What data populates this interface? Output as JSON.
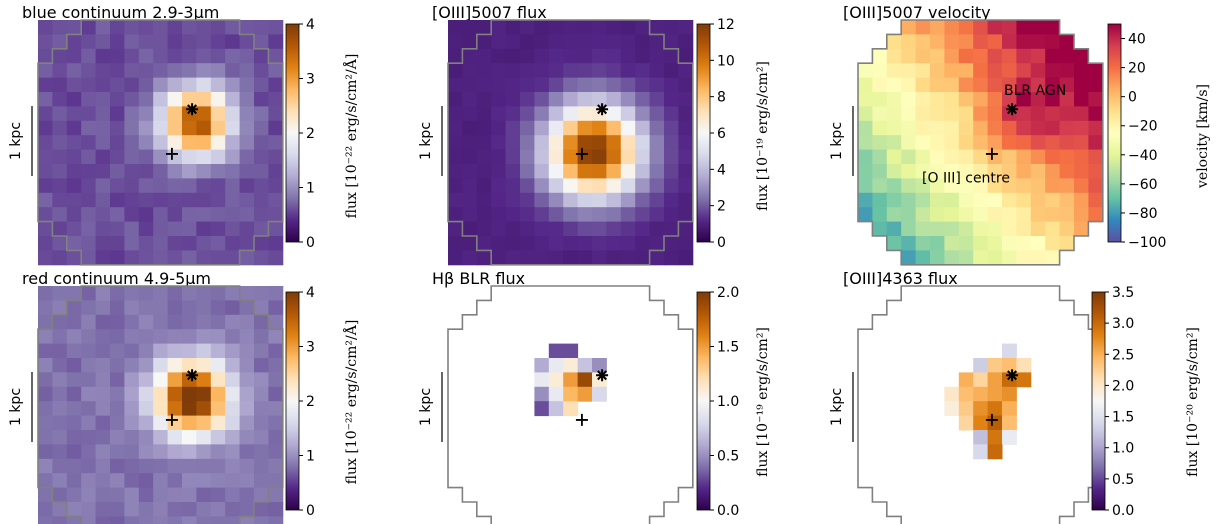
{
  "figure": {
    "scale_bar_label": "1 kpc"
  },
  "colormaps": {
    "puor": [
      "#2d004b",
      "#542788",
      "#8073ac",
      "#b2abd2",
      "#d8daeb",
      "#f7f7f7",
      "#fee0b6",
      "#fdb863",
      "#e08214",
      "#b35806",
      "#7f3b08"
    ],
    "spectral": [
      "#5e4fa2",
      "#3288bd",
      "#66c2a5",
      "#abdda4",
      "#e6f598",
      "#ffffbf",
      "#fee08b",
      "#fdae61",
      "#f46d43",
      "#d53e4f",
      "#9e0142"
    ]
  },
  "chart_data": [
    {
      "type": "heatmap",
      "title": "blue continuum 2.9-3μm",
      "colorbar_label": "flux [10⁻²² erg/s/cm²/Å]",
      "vmin": 0,
      "vmax": 4,
      "ticks": [
        0,
        1,
        2,
        3,
        4
      ],
      "tick_labels": [
        "0",
        "1",
        "2",
        "3",
        "4"
      ],
      "cmap": "puor",
      "center": [
        10.5,
        6.6
      ],
      "sigma": 1.7,
      "peak": 3.1,
      "background": 0.6,
      "offset": [
        0,
        0
      ],
      "aperture": "octagon",
      "masked": false,
      "markers": {
        "cross": [
          9.3,
          9.3
        ],
        "star": [
          10.7,
          6.2
        ]
      },
      "annotations": []
    },
    {
      "type": "heatmap",
      "title": "[OIII]5007 flux",
      "colorbar_label": "flux [10⁻¹⁹ erg/s/cm²]",
      "vmin": 0,
      "vmax": 12,
      "ticks": [
        0,
        2,
        4,
        6,
        8,
        10,
        12
      ],
      "tick_labels": [
        "0",
        "2",
        "4",
        "6",
        "8",
        "10",
        "12"
      ],
      "cmap": "puor",
      "center": [
        9.6,
        8.6
      ],
      "sigma": 2.3,
      "peak": 11.0,
      "background": 1.0,
      "offset": [
        1.5,
        0
      ],
      "aperture": "octagon",
      "masked": false,
      "markers": {
        "cross": [
          9.3,
          9.3
        ],
        "star": [
          10.7,
          6.2
        ]
      },
      "annotations": []
    },
    {
      "type": "heatmap",
      "title": "[OIII]5007 velocity",
      "colorbar_label": "velocity [km/s]",
      "vmin": -100,
      "vmax": 50,
      "ticks": [
        -100,
        -80,
        -60,
        -40,
        -20,
        0,
        20,
        40
      ],
      "tick_labels": [
        "−100",
        "−80",
        "−60",
        "−40",
        "−20",
        "0",
        "20",
        "40"
      ],
      "cmap": "spectral",
      "aperture": "octagon",
      "masked": false,
      "markers": {
        "cross": [
          9.3,
          9.3
        ],
        "star": [
          10.7,
          6.2
        ]
      },
      "annotations": [
        {
          "text": "BLR AGN",
          "at": [
            12.3,
            5.2
          ]
        },
        {
          "text": "[O III] centre",
          "at": [
            7.5,
            11.3
          ]
        }
      ]
    },
    {
      "type": "heatmap",
      "title": "red continuum 4.9-5μm",
      "colorbar_label": "flux [10⁻²² erg/s/cm²/Å]",
      "vmin": 0,
      "vmax": 4,
      "ticks": [
        0,
        1,
        2,
        3,
        4
      ],
      "tick_labels": [
        "0",
        "1",
        "2",
        "3",
        "4"
      ],
      "cmap": "puor",
      "center": [
        10.2,
        7.3
      ],
      "sigma": 1.8,
      "peak": 3.4,
      "background": 0.8,
      "offset": [
        0,
        0
      ],
      "aperture": "octagon",
      "masked": false,
      "markers": {
        "cross": [
          9.3,
          9.3
        ],
        "star": [
          10.7,
          6.2
        ]
      },
      "annotations": []
    },
    {
      "type": "heatmap",
      "title": "Hβ BLR flux",
      "colorbar_label": "flux [10⁻¹⁹ erg/s/cm²]",
      "vmin": 0,
      "vmax": 2,
      "ticks": [
        0,
        0.5,
        1.0,
        1.5,
        2.0
      ],
      "tick_labels": [
        "0.0",
        "0.5",
        "1.0",
        "1.5",
        "2.0"
      ],
      "cmap": "puor",
      "aperture": "octagon",
      "masked": true,
      "markers": {
        "cross": [
          9.3,
          9.3
        ],
        "star": [
          10.7,
          6.2
        ]
      },
      "annotations": [],
      "pixels": [
        [
          7,
          4,
          0.3
        ],
        [
          8,
          4,
          0.3
        ],
        [
          6,
          5,
          0.6
        ],
        [
          7,
          5,
          0.9
        ],
        [
          8,
          5,
          1.1
        ],
        [
          9,
          5,
          0.7
        ],
        [
          10,
          5,
          0.5
        ],
        [
          6,
          6,
          0.9
        ],
        [
          7,
          6,
          1.1
        ],
        [
          8,
          6,
          1.5
        ],
        [
          9,
          6,
          1.9
        ],
        [
          10,
          6,
          1.1
        ],
        [
          6,
          7,
          0.5
        ],
        [
          7,
          7,
          0.9
        ],
        [
          8,
          7,
          1.4
        ],
        [
          9,
          7,
          1.5
        ],
        [
          10,
          7,
          0.8
        ],
        [
          6,
          8,
          0.3
        ],
        [
          7,
          8,
          0.7
        ],
        [
          8,
          8,
          1.2
        ]
      ]
    },
    {
      "type": "heatmap",
      "title": "[OIII]4363 flux",
      "colorbar_label": "flux [10⁻²⁰ erg/s/cm²]",
      "vmin": 0,
      "vmax": 3.5,
      "ticks": [
        0,
        0.5,
        1.0,
        1.5,
        2.0,
        2.5,
        3.0,
        3.5
      ],
      "tick_labels": [
        "0.0",
        "0.5",
        "1.0",
        "1.5",
        "2.0",
        "2.5",
        "3.0",
        "3.5"
      ],
      "cmap": "puor",
      "aperture": "octagon",
      "masked": true,
      "markers": {
        "cross": [
          9.3,
          9.3
        ],
        "star": [
          10.7,
          6.2
        ]
      },
      "annotations": [],
      "pixels": [
        [
          10,
          4,
          1.4
        ],
        [
          8,
          5,
          1.3
        ],
        [
          9,
          5,
          2.3
        ],
        [
          10,
          5,
          2.4
        ],
        [
          11,
          5,
          2.1
        ],
        [
          7,
          6,
          2.5
        ],
        [
          8,
          6,
          2.2
        ],
        [
          9,
          6,
          2.6
        ],
        [
          10,
          6,
          3.0
        ],
        [
          11,
          6,
          2.9
        ],
        [
          6,
          7,
          2.0
        ],
        [
          7,
          7,
          2.4
        ],
        [
          8,
          7,
          2.5
        ],
        [
          9,
          7,
          2.6
        ],
        [
          10,
          7,
          2.7
        ],
        [
          6,
          8,
          1.9
        ],
        [
          7,
          8,
          2.3
        ],
        [
          8,
          8,
          2.7
        ],
        [
          9,
          8,
          2.9
        ],
        [
          10,
          8,
          2.5
        ],
        [
          7,
          9,
          2.2
        ],
        [
          8,
          9,
          2.8
        ],
        [
          9,
          9,
          3.1
        ],
        [
          10,
          9,
          2.4
        ],
        [
          8,
          10,
          1.2
        ],
        [
          9,
          10,
          2.9
        ],
        [
          10,
          10,
          1.6
        ],
        [
          8,
          11,
          1.4
        ],
        [
          9,
          11,
          3.0
        ]
      ]
    }
  ]
}
